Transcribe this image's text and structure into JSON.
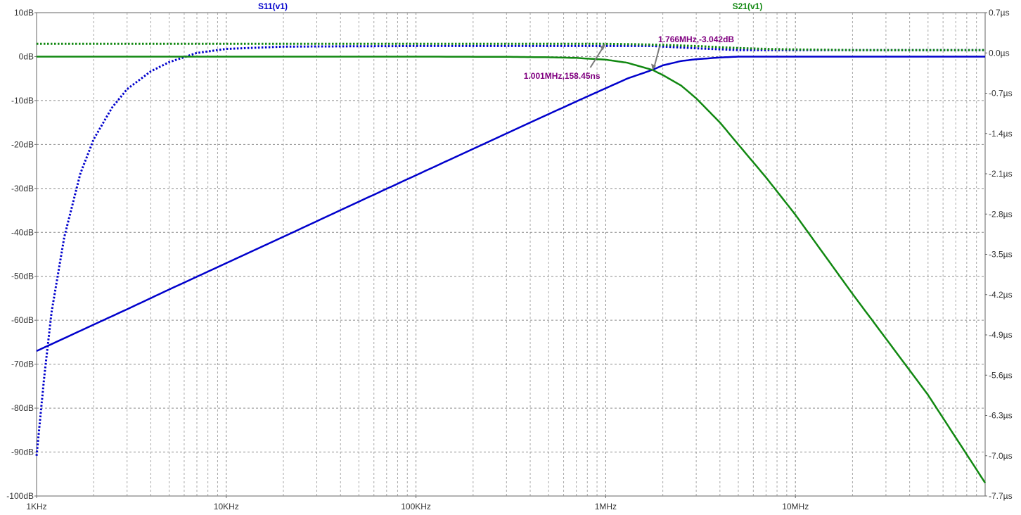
{
  "chart_data": {
    "type": "line",
    "title": "",
    "x_scale": "log",
    "xlim": [
      1000,
      100000000
    ],
    "x_ticks": [
      1000,
      10000,
      100000,
      1000000,
      10000000
    ],
    "x_tick_labels": [
      "1KHz",
      "10KHz",
      "100KHz",
      "1MHz",
      "10MHz"
    ],
    "ylim_left": [
      -100,
      10
    ],
    "y_left_ticks": [
      10,
      0,
      -10,
      -20,
      -30,
      -40,
      -50,
      -60,
      -70,
      -80,
      -90,
      -100
    ],
    "y_left_tick_labels": [
      "10dB",
      "0dB",
      "-10dB",
      "-20dB",
      "-30dB",
      "-40dB",
      "-50dB",
      "-60dB",
      "-70dB",
      "-80dB",
      "-90dB",
      "-100dB"
    ],
    "ylim_right": [
      -7.7,
      0.7
    ],
    "y_right_ticks": [
      0.7,
      0.0,
      -0.7,
      -1.4,
      -2.1,
      -2.8,
      -3.5,
      -4.2,
      -4.9,
      -5.6,
      -6.3,
      -7.0,
      -7.7
    ],
    "y_right_tick_labels": [
      "0.7µs",
      "0.0µs",
      "-0.7µs",
      "-1.4µs",
      "-2.1µs",
      "-2.8µs",
      "-3.5µs",
      "-4.2µs",
      "-4.9µs",
      "-5.6µs",
      "-6.3µs",
      "-7.0µs",
      "-7.7µs"
    ],
    "grid": true,
    "series": [
      {
        "name": "S11(v1)",
        "role": "magnitude",
        "axis": "left",
        "color": "#0000cc",
        "style": "solid",
        "x": [
          1000,
          1500,
          2000,
          3000,
          5000,
          10000,
          20000,
          50000,
          100000,
          200000,
          400000,
          700000,
          1000000,
          1300000,
          1766000,
          2000000,
          2500000,
          3000000,
          4000000,
          5000000,
          10000000,
          100000000
        ],
        "y": [
          -67,
          -63.5,
          -61,
          -57.5,
          -53,
          -47,
          -41,
          -33,
          -27,
          -21,
          -15,
          -10.2,
          -7.2,
          -5,
          -3,
          -2,
          -1,
          -0.6,
          -0.2,
          0,
          0,
          0
        ]
      },
      {
        "name": "S11(v1)",
        "role": "group delay",
        "axis": "right",
        "color": "#0000cc",
        "style": "dotted",
        "x": [
          1000,
          1100,
          1200,
          1400,
          1700,
          2000,
          2500,
          3000,
          4000,
          5000,
          7000,
          10000,
          20000,
          100000,
          1000000,
          1766000,
          3000000,
          5000000,
          10000000,
          100000000
        ],
        "y": [
          -7.0,
          -5.6,
          -4.5,
          -3.2,
          -2.1,
          -1.5,
          -0.95,
          -0.63,
          -0.32,
          -0.16,
          0.0,
          0.07,
          0.11,
          0.12,
          0.12,
          0.12,
          0.08,
          0.05,
          0.05,
          0.05
        ]
      },
      {
        "name": "S21(v1)",
        "role": "magnitude",
        "axis": "left",
        "color": "#118811",
        "style": "solid",
        "x": [
          1000,
          100000,
          300000,
          500000,
          700000,
          1000000,
          1300000,
          1766000,
          2000000,
          2500000,
          3000000,
          4000000,
          5000000,
          7000000,
          10000000,
          20000000,
          50000000,
          100000000
        ],
        "y": [
          0,
          0,
          -0.05,
          -0.15,
          -0.3,
          -0.7,
          -1.4,
          -3.04,
          -4.2,
          -6.6,
          -9.5,
          -15,
          -20,
          -27.5,
          -36,
          -54,
          -77,
          -97
        ]
      },
      {
        "name": "S21(v1)",
        "role": "group delay",
        "axis": "right",
        "color": "#118811",
        "style": "dotted",
        "x": [
          1000,
          100000,
          300000,
          700000,
          1000000,
          1500000,
          2000000,
          3000000,
          4000000,
          5000000,
          7000000,
          10000000,
          20000000,
          100000000
        ],
        "y": [
          0.158,
          0.158,
          0.158,
          0.158,
          0.158,
          0.15,
          0.14,
          0.12,
          0.1,
          0.085,
          0.07,
          0.06,
          0.05,
          0.05
        ]
      }
    ],
    "annotations": [
      {
        "text": "1.766MHz,-3.042dB",
        "x": 1766000,
        "y": -3.042,
        "axis": "left"
      },
      {
        "text": "1.001MHz,158.45ns",
        "x": 1001000,
        "y": 0.158,
        "axis": "right"
      }
    ]
  }
}
